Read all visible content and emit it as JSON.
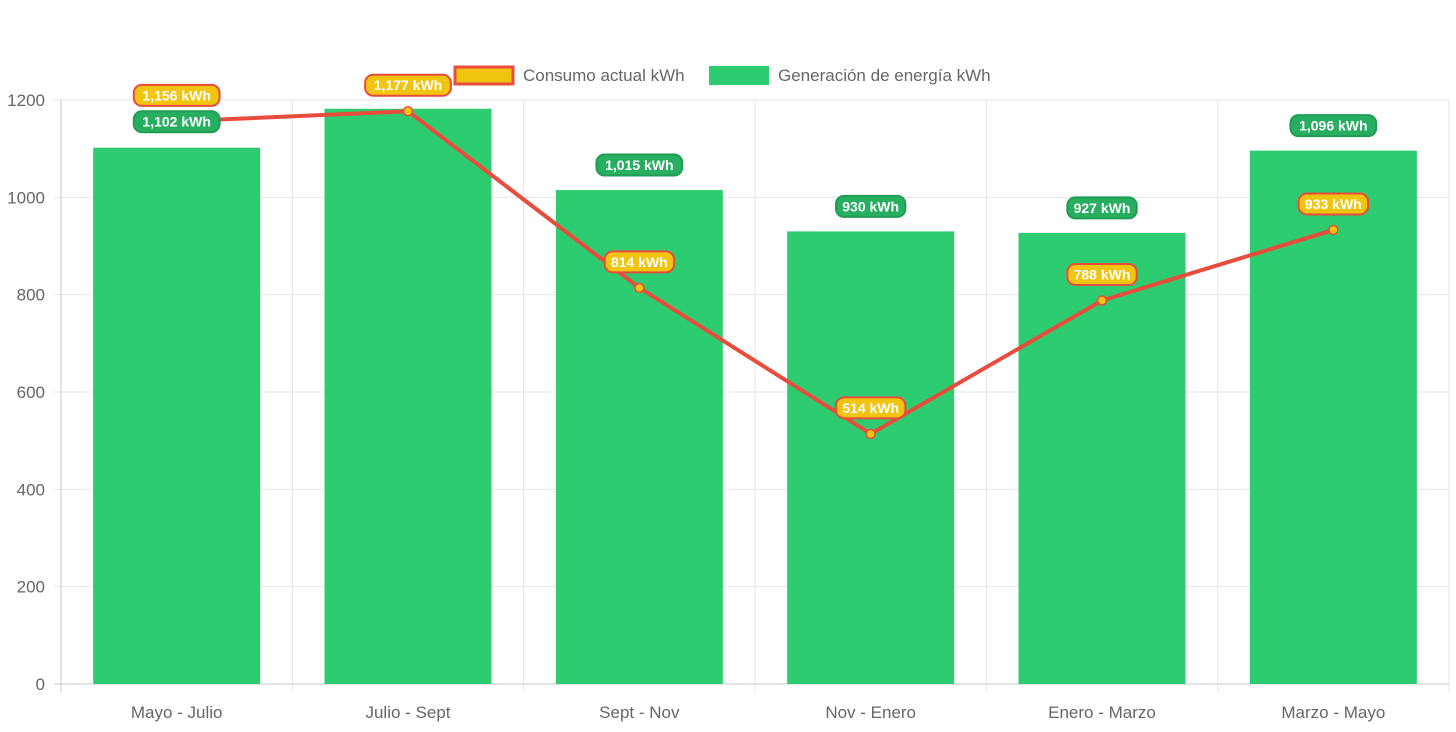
{
  "chart_data": {
    "type": "bar",
    "categories": [
      "Mayo - Julio",
      "Julio - Sept",
      "Sept - Nov",
      "Nov - Enero",
      "Enero - Marzo",
      "Marzo - Mayo"
    ],
    "series": [
      {
        "name": "Consumo actual kWh",
        "type": "line",
        "values": [
          1156,
          1177,
          814,
          514,
          788,
          933
        ],
        "labels": [
          "1,156 kWh",
          "1,177 kWh",
          "814 kWh",
          "514 kWh",
          "788 kWh",
          "933 kWh"
        ],
        "line_color": "#e74c3c",
        "fill_color": "#f1c40f"
      },
      {
        "name": "Generación de energía kWh",
        "type": "bar",
        "values": [
          1102,
          1182,
          1015,
          930,
          927,
          1096
        ],
        "labels": [
          "1,102 kWh",
          "",
          "1,015 kWh",
          "930 kWh",
          "927 kWh",
          "1,096 kWh"
        ],
        "color": "#2ecc71",
        "label_color": "#27ae60"
      }
    ],
    "y_ticks": [
      "0",
      "200",
      "400",
      "600",
      "800",
      "1000",
      "1200"
    ],
    "ylim": [
      0,
      1200
    ],
    "grid": true,
    "legend_position": "top"
  }
}
